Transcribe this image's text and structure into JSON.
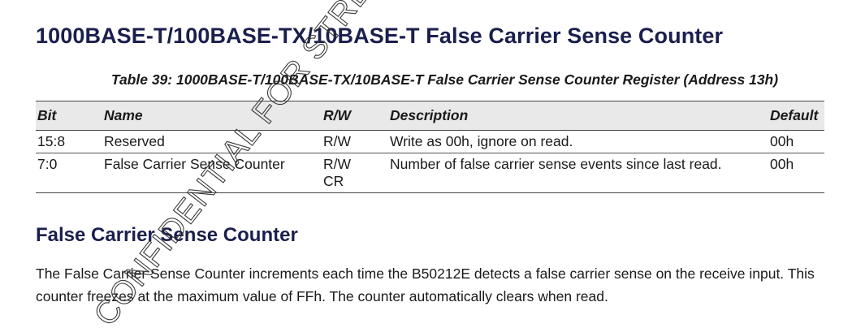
{
  "page_title": "1000BASE-T/100BASE-TX/10BASE-T False Carrier Sense Counter",
  "table_caption": "Table 39:  1000BASE-T/100BASE-TX/10BASE-T False Carrier Sense Counter Register (Address 13h)",
  "table": {
    "headers": {
      "bit": "Bit",
      "name": "Name",
      "rw": "R/W",
      "description": "Description",
      "default": "Default"
    },
    "rows": [
      {
        "bit": "15:8",
        "name": "Reserved",
        "rw": "R/W",
        "rw2": "",
        "description": "Write as 00h, ignore on read.",
        "default": "00h"
      },
      {
        "bit": "7:0",
        "name": "False Carrier Sense Counter",
        "rw": "R/W",
        "rw2": "CR",
        "description": "Number of false carrier sense events since last read.",
        "default": "00h"
      }
    ]
  },
  "section_heading": "False Carrier Sense Counter",
  "body_text": "The False Carrier Sense Counter increments each time the B50212E detects a false carrier sense on the receive input. This counter freezes at the maximum value of FFh. The counter automatically clears when read.",
  "watermark": {
    "text": "CONFIDENTIAL FOR STREAMAXTECH",
    "color": "#3a3a3a"
  }
}
